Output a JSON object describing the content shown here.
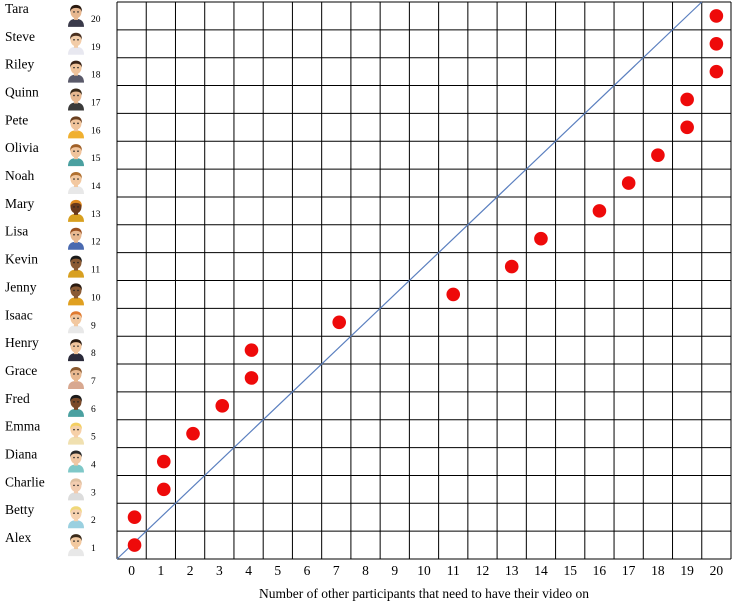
{
  "chart_data": {
    "type": "scatter",
    "xlabel": "Number of other participants that need to have their video on",
    "ylabel": "",
    "x_ticks": [
      "0",
      "1",
      "2",
      "3",
      "4",
      "5",
      "6",
      "7",
      "8",
      "9",
      "10",
      "11",
      "12",
      "13",
      "14",
      "15",
      "16",
      "17",
      "18",
      "19",
      "20"
    ],
    "xlim": [
      0,
      20
    ],
    "participants": [
      {
        "name": "Alex",
        "index": "1",
        "x": 0.1,
        "avatar": "avatar-alex-icon",
        "skin": "#f2c9a0",
        "hair": "#3a2a1a",
        "shirt": "#e8e8e8"
      },
      {
        "name": "Betty",
        "index": "2",
        "x": 0.1,
        "avatar": "avatar-betty-icon",
        "skin": "#f6d2b0",
        "hair": "#f0d878",
        "shirt": "#9ad0e0"
      },
      {
        "name": "Charlie",
        "index": "3",
        "x": 1.1,
        "avatar": "avatar-charlie-icon",
        "skin": "#f3cdb0",
        "hair": "#e0c0a0",
        "shirt": "#dcdcdc"
      },
      {
        "name": "Diana",
        "index": "4",
        "x": 1.1,
        "avatar": "avatar-diana-icon",
        "skin": "#f0c8a4",
        "hair": "#2a2a2a",
        "shirt": "#7fc8c8"
      },
      {
        "name": "Emma",
        "index": "5",
        "x": 2.1,
        "avatar": "avatar-emma-icon",
        "skin": "#f6d0a8",
        "hair": "#f4cf62",
        "shirt": "#f0e0b0"
      },
      {
        "name": "Fred",
        "index": "6",
        "x": 3.1,
        "avatar": "avatar-fred-icon",
        "skin": "#7a4a2a",
        "hair": "#1a1a1a",
        "shirt": "#4aa0a0"
      },
      {
        "name": "Grace",
        "index": "7",
        "x": 4.1,
        "avatar": "avatar-grace-icon",
        "skin": "#e8b890",
        "hair": "#8a5a30",
        "shirt": "#d8a890"
      },
      {
        "name": "Henry",
        "index": "8",
        "x": 4.1,
        "avatar": "avatar-henry-icon",
        "skin": "#f0c49c",
        "hair": "#2a1a10",
        "shirt": "#2a2a3a"
      },
      {
        "name": "Isaac",
        "index": "9",
        "x": 7.1,
        "avatar": "avatar-isaac-icon",
        "skin": "#f2c8a0",
        "hair": "#e07a30",
        "shirt": "#e8e8e8"
      },
      {
        "name": "Jenny",
        "index": "10",
        "x": 11.0,
        "avatar": "avatar-jenny-icon",
        "skin": "#8a5a34",
        "hair": "#2a1a10",
        "shirt": "#e0a020"
      },
      {
        "name": "Kevin",
        "index": "11",
        "x": 13.0,
        "avatar": "avatar-kevin-icon",
        "skin": "#8a5a34",
        "hair": "#1a1a1a",
        "shirt": "#d8a020"
      },
      {
        "name": "Lisa",
        "index": "12",
        "x": 14.0,
        "avatar": "avatar-lisa-icon",
        "skin": "#e8b890",
        "hair": "#9a5020",
        "shirt": "#4a6ab0"
      },
      {
        "name": "Mary",
        "index": "13",
        "x": 16.0,
        "avatar": "avatar-mary-icon",
        "skin": "#6a3a1c",
        "hair": "#e08a20",
        "shirt": "#d8a020"
      },
      {
        "name": "Noah",
        "index": "14",
        "x": 17.0,
        "avatar": "avatar-noah-icon",
        "skin": "#f2c8a0",
        "hair": "#b07030",
        "shirt": "#e8e8e8"
      },
      {
        "name": "Olivia",
        "index": "15",
        "x": 18.0,
        "avatar": "avatar-olivia-icon",
        "skin": "#f0c49c",
        "hair": "#a06028",
        "shirt": "#4aa0a0"
      },
      {
        "name": "Pete",
        "index": "16",
        "x": 19.0,
        "avatar": "avatar-pete-icon",
        "skin": "#f0c49c",
        "hair": "#6a4020",
        "shirt": "#f0b030"
      },
      {
        "name": "Quinn",
        "index": "17",
        "x": 19.0,
        "avatar": "avatar-quinn-icon",
        "skin": "#e8b890",
        "hair": "#3a2a1a",
        "shirt": "#3a3a3a"
      },
      {
        "name": "Riley",
        "index": "18",
        "x": 20.0,
        "avatar": "avatar-riley-icon",
        "skin": "#f0c49c",
        "hair": "#3a2418",
        "shirt": "#5a5a6a"
      },
      {
        "name": "Steve",
        "index": "19",
        "x": 20.0,
        "avatar": "avatar-steve-icon",
        "skin": "#f2cca8",
        "hair": "#4a3020",
        "shirt": "#e8e8f0"
      },
      {
        "name": "Tara",
        "index": "20",
        "x": 20.0,
        "avatar": "avatar-tara-icon",
        "skin": "#e8b890",
        "hair": "#2a1a10",
        "shirt": "#3a3a4a"
      }
    ],
    "reference_line": "diagonal",
    "grid": true,
    "colors": {
      "point": "#ee0a0a",
      "diagonal": "#5a7fbf",
      "grid": "#000000"
    }
  }
}
